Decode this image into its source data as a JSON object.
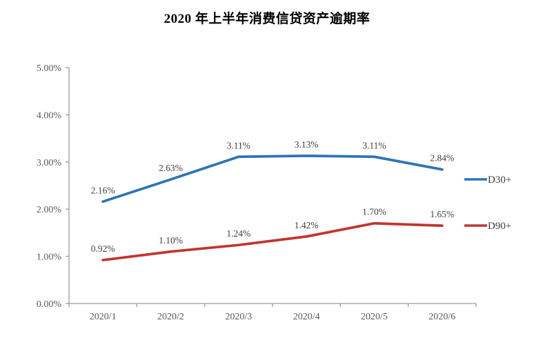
{
  "chart_data": {
    "type": "line",
    "title": "2020 年上半年消费信贷资产逾期率",
    "categories": [
      "2020/1",
      "2020/2",
      "2020/3",
      "2020/4",
      "2020/5",
      "2020/6"
    ],
    "series": [
      {
        "name": "D30+",
        "color": "#2E74B8",
        "values": [
          2.16,
          2.63,
          3.11,
          3.13,
          3.11,
          2.84
        ],
        "labels": [
          "2.16%",
          "2.63%",
          "3.11%",
          "3.13%",
          "3.11%",
          "2.84%"
        ]
      },
      {
        "name": "D90+",
        "color": "#C13530",
        "values": [
          0.92,
          1.1,
          1.24,
          1.42,
          1.7,
          1.65
        ],
        "labels": [
          "0.92%",
          "1.10%",
          "1.24%",
          "1.42%",
          "1.70%",
          "1.65%"
        ]
      }
    ],
    "ylim": [
      0,
      5
    ],
    "y_tick_labels": [
      "0.00%",
      "1.00%",
      "2.00%",
      "3.00%",
      "4.00%",
      "5.00%"
    ],
    "xlabel": "",
    "ylabel": "",
    "grid": false,
    "data_labels": true,
    "legend_position": "right"
  },
  "style_colors": {
    "axis": "#9B9B9B",
    "tick_label": "#595959",
    "data_label": "#404040",
    "legend_label": "#3B3B3B",
    "background": "#FFFFFF"
  }
}
